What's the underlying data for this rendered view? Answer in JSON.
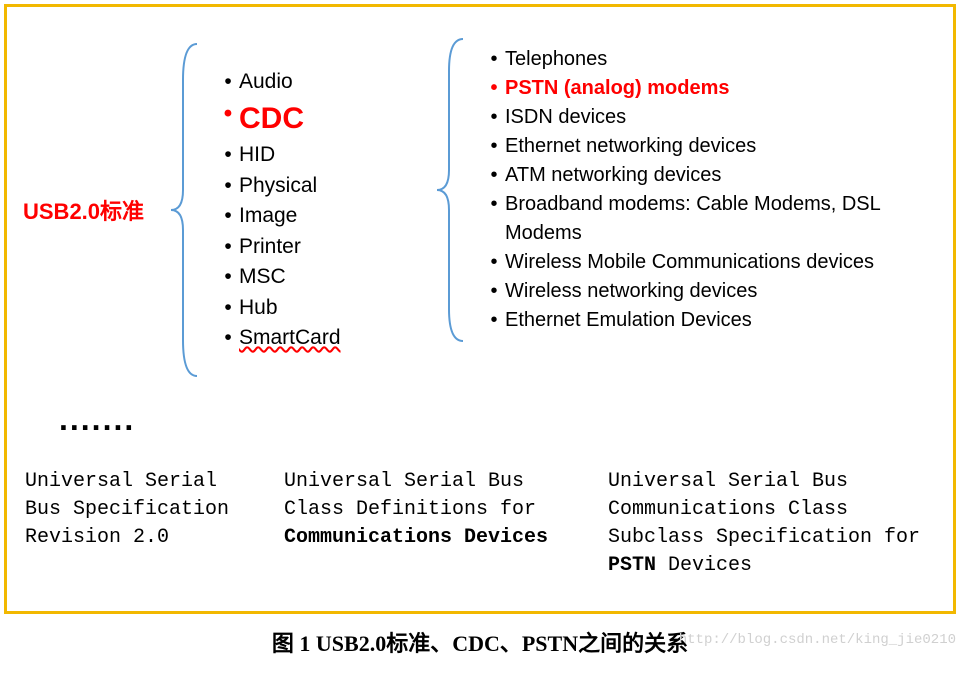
{
  "colors": {
    "frame_border": "#f2b800",
    "highlight": "#ff0000",
    "text": "#000000",
    "brace": "#5b9bd5",
    "watermark": "#d0d0d0",
    "background": "#ffffff"
  },
  "usb_label": "USB2.0标准",
  "mid_list": [
    {
      "text": "Audio",
      "highlight": false
    },
    {
      "text": "CDC",
      "highlight": true,
      "big": true
    },
    {
      "text": "HID",
      "highlight": false
    },
    {
      "text": "Physical",
      "highlight": false
    },
    {
      "text": "Image",
      "highlight": false
    },
    {
      "text": "Printer",
      "highlight": false
    },
    {
      "text": "MSC",
      "highlight": false
    },
    {
      "text": "Hub",
      "highlight": false
    },
    {
      "text": "SmartCard",
      "highlight": false,
      "wavy": true
    }
  ],
  "dots": ".......",
  "right_list": [
    {
      "text": "Telephones",
      "highlight": false
    },
    {
      "text": "PSTN (analog) modems",
      "highlight": true
    },
    {
      "text": "ISDN devices",
      "highlight": false
    },
    {
      "text": "Ethernet networking devices",
      "highlight": false
    },
    {
      "text": "ATM networking devices",
      "highlight": false
    },
    {
      "text": "Broadband modems: Cable Modems, DSL Modems",
      "highlight": false
    },
    {
      "text": "Wireless Mobile Communications devices",
      "highlight": false
    },
    {
      "text": "Wireless networking devices",
      "highlight": false
    },
    {
      "text": "Ethernet Emulation Devices",
      "highlight": false
    }
  ],
  "spec1": {
    "l1": "Universal Serial",
    "l2": "Bus Specification",
    "l3": "Revision 2.0"
  },
  "spec2": {
    "l1": "Universal Serial Bus",
    "l2": "Class Definitions for",
    "l3_bold": "Communications Devices"
  },
  "spec3": {
    "l1": "Universal Serial Bus",
    "l2": "Communications Class",
    "l3": "Subclass Specification for",
    "l4_bold": "PSTN",
    "l4_rest": " Devices"
  },
  "caption": "图 1 USB2.0标准、CDC、PSTN之间的关系",
  "watermark": "http://blog.csdn.net/king_jie0210"
}
